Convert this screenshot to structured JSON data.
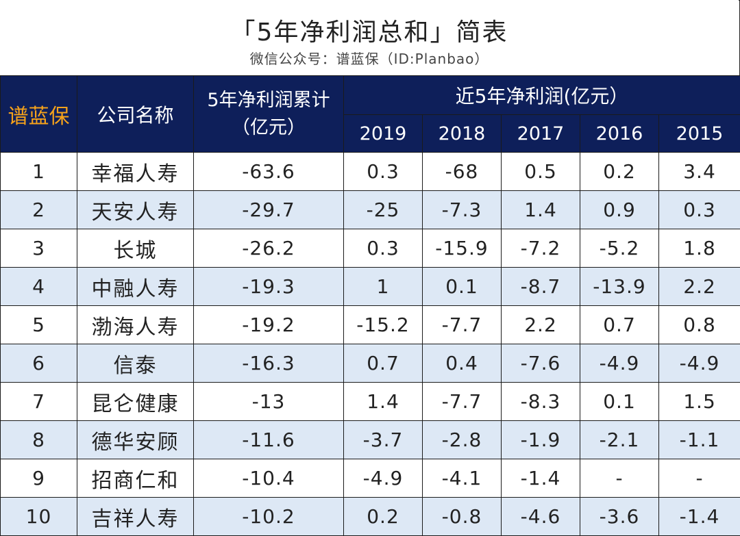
{
  "title": "「5年净利润总和」简表",
  "subtitle": "微信公众号：谱蓝保（ID:Planbao）",
  "header": {
    "brand": "谱蓝保",
    "company": "公司名称",
    "cumulative_line1": "5年净利润累计",
    "cumulative_line2": "（亿元）",
    "recent_group": "近5年净利润(亿元）",
    "years": [
      "2019",
      "2018",
      "2017",
      "2016",
      "2015"
    ]
  },
  "rows": [
    {
      "rank": "1",
      "name": "幸福人寿",
      "total": "-63.6",
      "y2019": "0.3",
      "y2018": "-68",
      "y2017": "0.5",
      "y2016": "0.2",
      "y2015": "3.4"
    },
    {
      "rank": "2",
      "name": "天安人寿",
      "total": "-29.7",
      "y2019": "-25",
      "y2018": "-7.3",
      "y2017": "1.4",
      "y2016": "0.9",
      "y2015": "0.3"
    },
    {
      "rank": "3",
      "name": "长城",
      "total": "-26.2",
      "y2019": "0.3",
      "y2018": "-15.9",
      "y2017": "-7.2",
      "y2016": "-5.2",
      "y2015": "1.8"
    },
    {
      "rank": "4",
      "name": "中融人寿",
      "total": "-19.3",
      "y2019": "1",
      "y2018": "0.1",
      "y2017": "-8.7",
      "y2016": "-13.9",
      "y2015": "2.2"
    },
    {
      "rank": "5",
      "name": "渤海人寿",
      "total": "-19.2",
      "y2019": "-15.2",
      "y2018": "-7.7",
      "y2017": "2.2",
      "y2016": "0.7",
      "y2015": "0.8"
    },
    {
      "rank": "6",
      "name": "信泰",
      "total": "-16.3",
      "y2019": "0.7",
      "y2018": "0.4",
      "y2017": "-7.6",
      "y2016": "-4.9",
      "y2015": "-4.9"
    },
    {
      "rank": "7",
      "name": "昆仑健康",
      "total": "-13",
      "y2019": "1.4",
      "y2018": "-7.7",
      "y2017": "-8.3",
      "y2016": "0.1",
      "y2015": "1.5"
    },
    {
      "rank": "8",
      "name": "德华安顾",
      "total": "-11.6",
      "y2019": "-3.7",
      "y2018": "-2.8",
      "y2017": "-1.9",
      "y2016": "-2.1",
      "y2015": "-1.1"
    },
    {
      "rank": "9",
      "name": "招商仁和",
      "total": "-10.4",
      "y2019": "-4.9",
      "y2018": "-4.1",
      "y2017": "-1.4",
      "y2016": "-",
      "y2015": "-"
    },
    {
      "rank": "10",
      "name": "吉祥人寿",
      "total": "-10.2",
      "y2019": "0.2",
      "y2018": "-0.8",
      "y2017": "-4.6",
      "y2016": "-3.6",
      "y2015": "-1.4"
    }
  ],
  "colors": {
    "header_bg": "#0e1f5a",
    "header_text": "#ffffff",
    "brand_text": "#f5a21b",
    "stripe": "#dde8f5"
  }
}
